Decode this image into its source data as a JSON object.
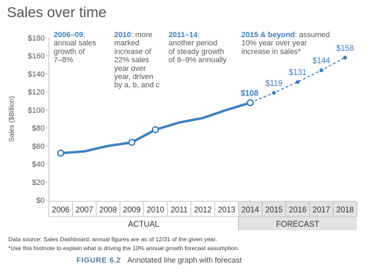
{
  "chart_data": {
    "type": "line",
    "title": "Sales over time",
    "ylabel": "Sales ($Billion)",
    "ylim": [
      0,
      180
    ],
    "y_ticks": [
      "$0",
      "$20",
      "$40",
      "$60",
      "$80",
      "$100",
      "$120",
      "$140",
      "$160",
      "$180"
    ],
    "categories": [
      "2006",
      "2007",
      "2008",
      "2009",
      "2010",
      "2011",
      "2012",
      "2013",
      "2014",
      "2015",
      "2016",
      "2017",
      "2018"
    ],
    "series": [
      {
        "values": [
          52,
          54,
          60,
          64,
          78,
          86,
          91,
          100,
          108,
          null,
          null,
          null,
          null
        ]
      },
      {
        "values": [
          null,
          null,
          null,
          null,
          null,
          null,
          null,
          null,
          108,
          119,
          131,
          144,
          158
        ]
      }
    ],
    "data_labels": [
      {
        "index": 8,
        "text": "$108"
      },
      {
        "index": 9,
        "text": "$119"
      },
      {
        "index": 10,
        "text": "$131"
      },
      {
        "index": 11,
        "text": "$144"
      },
      {
        "index": 12,
        "text": "$158"
      }
    ],
    "groups": [
      {
        "label": "ACTUAL"
      },
      {
        "label": "FORECAST"
      }
    ],
    "annotations": [
      {
        "head": "2006–09",
        "rest": ":",
        "lines": [
          "annual sales",
          "growth of",
          "7–8%"
        ]
      },
      {
        "head": "2010",
        "rest": ": more",
        "lines": [
          "marked",
          "increase of",
          "22% sales",
          "year over",
          "year, driven",
          "by a, b, and c"
        ]
      },
      {
        "head": "2011–14",
        "rest": ":",
        "lines": [
          "another period",
          "of steady growth",
          "of 8–9% annually"
        ]
      },
      {
        "head": "2015 & beyond",
        "rest": ": assumed",
        "lines": [
          "10% year over year",
          "increase in sales*"
        ]
      }
    ],
    "footnotes": [
      "Data source: Sales Dashboard; annual figures are as of 12/31 of the given year.",
      "*Use this footnote to explain what is driving the 10% annual growth forecast assumption."
    ],
    "figure_caption": {
      "label": "FIGURE 6.2",
      "text": "Annotated line graph with forecast"
    },
    "colors": {
      "line": "#3d7ebf",
      "text": "#555555",
      "forecast_band": "#e3e3e3",
      "axis": "#bfbfbf"
    }
  }
}
